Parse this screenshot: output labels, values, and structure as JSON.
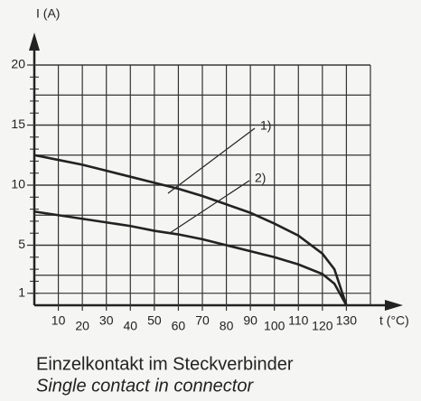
{
  "chart_data": {
    "type": "line",
    "y_label": "I (A)",
    "x_label": "t (°C)",
    "caption": "Einzelkontakt im Steckverbinder",
    "caption_en": "Single contact in connector",
    "annotations": [
      "1)",
      "2)"
    ],
    "x": [
      0,
      10,
      20,
      30,
      40,
      50,
      60,
      70,
      80,
      90,
      100,
      110,
      120,
      125,
      130
    ],
    "series": [
      {
        "name": "1)",
        "color": "#222222",
        "values": [
          12.5,
          12.1,
          11.7,
          11.2,
          10.7,
          10.2,
          9.7,
          9.1,
          8.4,
          7.7,
          6.8,
          5.8,
          4.3,
          3.0,
          0
        ]
      },
      {
        "name": "2)",
        "color": "#222222",
        "values": [
          7.8,
          7.5,
          7.2,
          6.9,
          6.6,
          6.2,
          5.9,
          5.5,
          5.0,
          4.5,
          4.0,
          3.4,
          2.6,
          1.8,
          0
        ]
      }
    ],
    "xlim": [
      0,
      140
    ],
    "xticks": [
      10,
      20,
      30,
      40,
      50,
      60,
      70,
      80,
      90,
      100,
      110,
      120,
      130
    ],
    "ylim": [
      0,
      20
    ],
    "yticks": [
      1,
      5,
      10,
      15,
      20
    ],
    "grid": true
  }
}
